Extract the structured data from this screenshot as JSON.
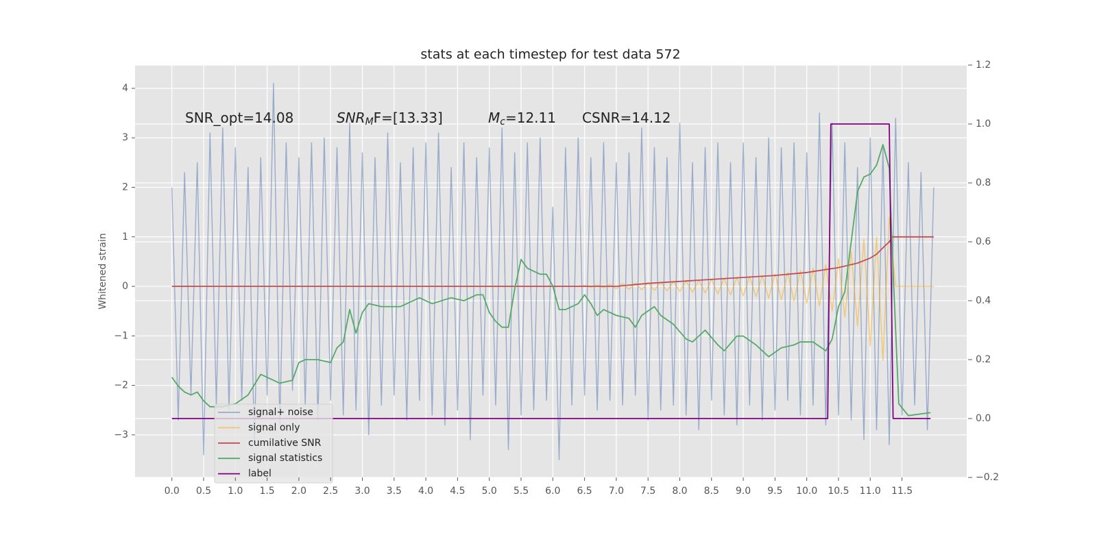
{
  "chart_data": {
    "type": "line",
    "title": "stats at each timestep for test data 572",
    "y_label": "Whitened strain",
    "xlim": [
      -0.58,
      12.52
    ],
    "ylim": [
      -3.86,
      4.47
    ],
    "y2lim": [
      -0.2,
      1.2
    ],
    "xticks": [
      {
        "value": 0,
        "label": "0.0"
      },
      0.5,
      {
        "value": 1,
        "label": "1.0"
      },
      1.5,
      {
        "value": 2,
        "label": "2.0"
      },
      2.5,
      {
        "value": 3,
        "label": "3.0"
      },
      3.5,
      {
        "value": 4,
        "label": "4.0"
      },
      4.5,
      {
        "value": 5,
        "label": "5.0"
      },
      5.5,
      {
        "value": 6,
        "label": "6.0"
      },
      6.5,
      {
        "value": 7,
        "label": "7.0"
      },
      7.5,
      {
        "value": 8,
        "label": "8.0"
      },
      8.5,
      {
        "value": 9,
        "label": "9.0"
      },
      9.5,
      {
        "value": 10,
        "label": "10.0"
      },
      10.5,
      {
        "value": 11,
        "label": "11.0"
      },
      11.5
    ],
    "yticks": [
      {
        "value": -3,
        "label": "−3"
      },
      {
        "value": -2,
        "label": "−2"
      },
      {
        "value": -1,
        "label": "−1"
      },
      0,
      1,
      2,
      3,
      4
    ],
    "y2ticks": [
      {
        "value": -0.2,
        "label": "−0.2"
      },
      {
        "value": 0,
        "label": "0.0"
      },
      0.2,
      0.4,
      0.6,
      0.8,
      {
        "value": 1,
        "label": "1.0"
      },
      1.2
    ],
    "grid": true,
    "legend_loc": "lower left",
    "annotations": [
      {
        "parts": [
          "SNR_opt=14.08"
        ]
      },
      {
        "parts": [
          "SNR",
          "M",
          "F=[13.33]"
        ]
      },
      {
        "parts": [
          "M",
          "c",
          "=12.11"
        ]
      },
      {
        "parts": [
          "CSNR=14.12"
        ]
      }
    ],
    "x": [
      0,
      0.1,
      0.2,
      0.3,
      0.4,
      0.5,
      0.6,
      0.7,
      0.8,
      0.9,
      1,
      1.1,
      1.2,
      1.3,
      1.4,
      1.5,
      1.6,
      1.7,
      1.8,
      1.9,
      2,
      2.1,
      2.2,
      2.3,
      2.4,
      2.5,
      2.6,
      2.7,
      2.8,
      2.9,
      3,
      3.1,
      3.2,
      3.3,
      3.4,
      3.5,
      3.6,
      3.7,
      3.8,
      3.9,
      4,
      4.1,
      4.2,
      4.3,
      4.4,
      4.5,
      4.6,
      4.7,
      4.8,
      4.9,
      5,
      5.1,
      5.2,
      5.3,
      5.4,
      5.5,
      5.6,
      5.7,
      5.8,
      5.9,
      6,
      6.1,
      6.2,
      6.3,
      6.4,
      6.5,
      6.6,
      6.7,
      6.8,
      6.9,
      7,
      7.1,
      7.2,
      7.3,
      7.4,
      7.5,
      7.6,
      7.7,
      7.8,
      7.9,
      8,
      8.1,
      8.2,
      8.3,
      8.4,
      8.5,
      8.6,
      8.7,
      8.8,
      8.9,
      9,
      9.1,
      9.2,
      9.3,
      9.4,
      9.5,
      9.6,
      9.7,
      9.8,
      9.9,
      10,
      10.1,
      10.2,
      10.3,
      10.4,
      10.5,
      10.6,
      10.7,
      10.8,
      10.9,
      11,
      11.1,
      11.2,
      11.3,
      11.4,
      11.5,
      11.6,
      11.7,
      11.8,
      11.9,
      12
    ],
    "series": [
      {
        "name": "signal+ noise",
        "color": "#4c72b0",
        "values": [
          2.0,
          -2.7,
          2.3,
          -2.2,
          2.5,
          -3.4,
          3.1,
          -2.4,
          3.2,
          -2.5,
          2.8,
          -2.3,
          2.4,
          -3.2,
          2.6,
          -2.2,
          4.1,
          -2.8,
          2.9,
          -2.1,
          2.6,
          -2.4,
          2.9,
          -2.7,
          3.0,
          -2.3,
          2.8,
          -2.6,
          3.3,
          -2.5,
          2.7,
          -3.0,
          2.6,
          -2.4,
          3.1,
          -2.2,
          2.5,
          -2.7,
          2.8,
          -2.3,
          2.9,
          -2.6,
          3.1,
          -2.8,
          2.4,
          -2.5,
          2.9,
          -3.1,
          2.6,
          -2.2,
          2.8,
          -2.4,
          3.2,
          -3.3,
          2.7,
          -2.6,
          2.9,
          -2.5,
          3.0,
          -2.3,
          1.6,
          -3.5,
          2.8,
          -2.4,
          3.0,
          -2.2,
          2.6,
          -2.5,
          2.9,
          -2.3,
          2.5,
          -2.4,
          2.7,
          -2.2,
          3.2,
          -2.7,
          2.8,
          -2.5,
          2.6,
          -2.4,
          3.3,
          -2.6,
          2.5,
          -2.9,
          2.8,
          -2.3,
          2.9,
          -2.6,
          2.5,
          -2.8,
          2.9,
          -2.4,
          2.6,
          -2.7,
          3.0,
          -2.5,
          2.8,
          -2.3,
          2.9,
          -2.6,
          2.7,
          -2.4,
          3.5,
          -2.8,
          3.3,
          -2.6,
          2.9,
          -2.7,
          2.4,
          -3.1,
          3.0,
          -2.9,
          2.8,
          -3.2,
          3.4,
          -2.6,
          2.5,
          -2.4,
          2.3,
          -2.9,
          2.0
        ]
      },
      {
        "name": "signal only",
        "color": "orange",
        "values": [
          0,
          0,
          0,
          0,
          0,
          0,
          0,
          0,
          0,
          0,
          0,
          0,
          0,
          0,
          0,
          0,
          0,
          0,
          0,
          0,
          0,
          0,
          0,
          0,
          0,
          0,
          0,
          0,
          0,
          0,
          0,
          0,
          0,
          0,
          0,
          0,
          0,
          0,
          0,
          0,
          0,
          0,
          0,
          0,
          0,
          0,
          0,
          0,
          0,
          0,
          0,
          0,
          0,
          0,
          0,
          0,
          0,
          0,
          0,
          0,
          0,
          0,
          0,
          0,
          0,
          0.02,
          -0.02,
          0.03,
          -0.03,
          0.04,
          -0.05,
          0.06,
          -0.06,
          0.07,
          -0.07,
          0.08,
          -0.08,
          0.09,
          -0.09,
          0.1,
          -0.1,
          0.11,
          -0.12,
          0.12,
          -0.13,
          0.14,
          -0.15,
          0.16,
          -0.17,
          0.18,
          -0.19,
          0.2,
          -0.21,
          0.22,
          -0.24,
          0.25,
          -0.27,
          0.28,
          -0.3,
          0.32,
          -0.34,
          0.37,
          -0.4,
          0.44,
          -0.5,
          0.56,
          -0.62,
          0.7,
          -0.8,
          0.95,
          -1.2,
          1.0,
          -1.5,
          1.4,
          0,
          0,
          0,
          0,
          0,
          0,
          0
        ]
      },
      {
        "name": "cumilative SNR",
        "color": "#c44e52",
        "x": [
          0,
          7.0,
          7.5,
          8,
          8.5,
          9,
          9.5,
          10,
          10.5,
          10.8,
          11,
          11.1,
          11.2,
          11.3,
          11.35,
          12.0
        ],
        "values": [
          0,
          0,
          0.06,
          0.1,
          0.14,
          0.18,
          0.22,
          0.28,
          0.38,
          0.47,
          0.57,
          0.65,
          0.78,
          0.9,
          1.0,
          1.0
        ]
      },
      {
        "name": "signal statistics",
        "color": "#55a868",
        "axis": "y2",
        "x": [
          0,
          0.1,
          0.2,
          0.3,
          0.4,
          0.5,
          0.6,
          0.7,
          0.8,
          1.0,
          1.2,
          1.4,
          1.5,
          1.7,
          1.9,
          2.0,
          2.1,
          2.3,
          2.5,
          2.6,
          2.7,
          2.8,
          2.9,
          3.0,
          3.1,
          3.3,
          3.6,
          3.9,
          4.1,
          4.4,
          4.6,
          4.8,
          4.9,
          5.0,
          5.1,
          5.2,
          5.3,
          5.4,
          5.5,
          5.6,
          5.8,
          5.9,
          6.0,
          6.1,
          6.2,
          6.4,
          6.5,
          6.6,
          6.7,
          6.8,
          7.0,
          7.2,
          7.3,
          7.4,
          7.6,
          7.7,
          7.9,
          8.1,
          8.2,
          8.3,
          8.4,
          8.6,
          8.7,
          8.9,
          9.0,
          9.2,
          9.4,
          9.6,
          9.8,
          9.9,
          10.1,
          10.3,
          10.4,
          10.5,
          10.6,
          10.7,
          10.8,
          10.9,
          11.0,
          11.1,
          11.2,
          11.3,
          11.35,
          11.45,
          11.6,
          11.95
        ],
        "values": [
          0.14,
          0.11,
          0.09,
          0.08,
          0.09,
          0.06,
          0.04,
          0.04,
          0.04,
          0.05,
          0.08,
          0.15,
          0.14,
          0.12,
          0.13,
          0.19,
          0.2,
          0.2,
          0.19,
          0.24,
          0.26,
          0.37,
          0.29,
          0.36,
          0.39,
          0.38,
          0.38,
          0.41,
          0.39,
          0.41,
          0.4,
          0.42,
          0.42,
          0.36,
          0.33,
          0.31,
          0.31,
          0.44,
          0.54,
          0.51,
          0.49,
          0.49,
          0.45,
          0.37,
          0.37,
          0.39,
          0.42,
          0.39,
          0.35,
          0.37,
          0.35,
          0.34,
          0.31,
          0.35,
          0.38,
          0.35,
          0.32,
          0.27,
          0.26,
          0.28,
          0.3,
          0.25,
          0.23,
          0.28,
          0.28,
          0.25,
          0.21,
          0.24,
          0.25,
          0.26,
          0.26,
          0.23,
          0.27,
          0.38,
          0.43,
          0.6,
          0.77,
          0.82,
          0.83,
          0.86,
          0.93,
          0.85,
          0.55,
          0.05,
          0.01,
          0.02
        ]
      },
      {
        "name": "label",
        "color": "purple",
        "axis": "y2",
        "x": [
          0,
          10.33,
          10.38,
          11.3,
          11.36,
          11.95
        ],
        "values": [
          0,
          0,
          1,
          1,
          0,
          0
        ]
      }
    ]
  }
}
